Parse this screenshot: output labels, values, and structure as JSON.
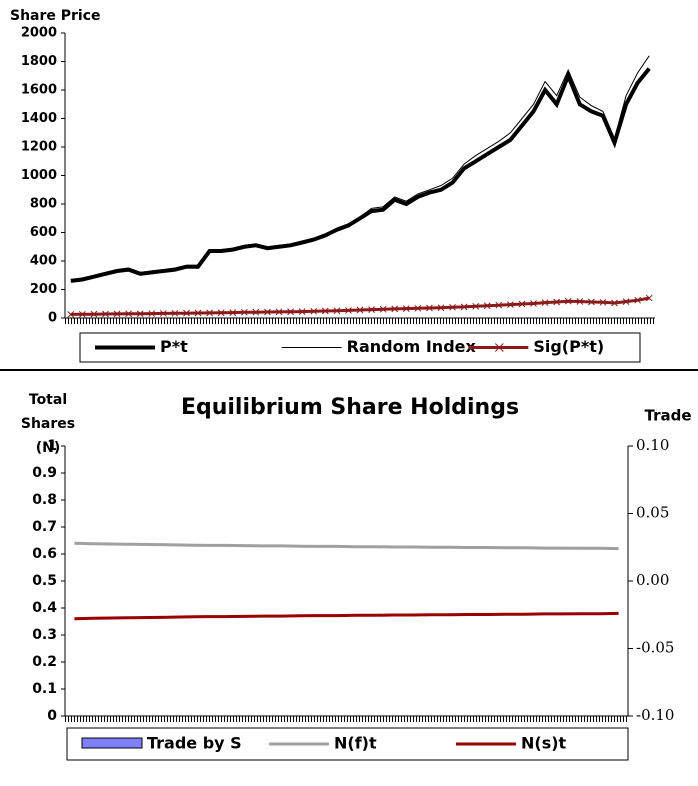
{
  "chart_data": [
    {
      "type": "line",
      "ylabel": "Share Price",
      "ylim": [
        0,
        2000
      ],
      "yticks": [
        0,
        200,
        400,
        600,
        800,
        1000,
        1200,
        1400,
        1600,
        1800,
        2000
      ],
      "legend": "bottom",
      "series": [
        {
          "name": "P*t",
          "color": "#000000",
          "values": [
            260,
            270,
            290,
            310,
            330,
            340,
            310,
            320,
            330,
            340,
            360,
            360,
            470,
            470,
            480,
            500,
            510,
            490,
            500,
            510,
            530,
            550,
            580,
            620,
            650,
            700,
            750,
            760,
            830,
            800,
            850,
            880,
            900,
            950,
            1050,
            1100,
            1150,
            1200,
            1250,
            1350,
            1450,
            1600,
            1500,
            1700,
            1500,
            1450,
            1420,
            1230,
            1500,
            1650,
            1750
          ]
        },
        {
          "name": "Random Index",
          "color": "#000000",
          "values": [
            270,
            280,
            300,
            320,
            340,
            350,
            320,
            330,
            340,
            350,
            370,
            370,
            480,
            480,
            490,
            510,
            520,
            500,
            510,
            520,
            540,
            560,
            590,
            630,
            660,
            710,
            770,
            780,
            850,
            820,
            870,
            900,
            930,
            980,
            1080,
            1140,
            1190,
            1240,
            1300,
            1400,
            1500,
            1660,
            1560,
            1740,
            1550,
            1490,
            1450,
            1260,
            1560,
            1720,
            1840
          ]
        },
        {
          "name": "Sig(P*t)",
          "color": "#8b1a1a",
          "values": [
            25,
            26,
            27,
            28,
            29,
            30,
            30,
            31,
            32,
            33,
            34,
            35,
            36,
            37,
            38,
            40,
            41,
            42,
            43,
            44,
            45,
            47,
            49,
            51,
            53,
            56,
            59,
            61,
            64,
            66,
            68,
            70,
            72,
            75,
            78,
            82,
            86,
            90,
            94,
            98,
            102,
            108,
            112,
            118,
            116,
            112,
            110,
            105,
            115,
            125,
            140
          ]
        }
      ]
    },
    {
      "type": "line",
      "title": "Equilibrium Share Holdings",
      "ylabel": "Total Shares (N)",
      "y2label": "Trade",
      "ylim": [
        0,
        1
      ],
      "yticks": [
        0,
        0.1,
        0.2,
        0.3,
        0.4,
        0.5,
        0.6,
        0.7,
        0.8,
        0.9,
        1
      ],
      "y2lim": [
        -0.1,
        0.1
      ],
      "y2ticks": [
        {
          "value": -0.1,
          "label": "-0.10"
        },
        {
          "value": -0.05,
          "label": "-0.05"
        },
        {
          "value": 0,
          "label": "0.00"
        },
        {
          "value": 0.05,
          "label": "0.05"
        },
        {
          "value": 0.1,
          "label": "0.10"
        }
      ],
      "legend": "bottom",
      "series": [
        {
          "name": "Trade by S",
          "color": "#8080ff",
          "type": "bar",
          "axis": "y2",
          "values": [
            0,
            0,
            0,
            0,
            0,
            0,
            0,
            0,
            0,
            0,
            0,
            0,
            0,
            0,
            0,
            0,
            0,
            0,
            0,
            0,
            0,
            0,
            0,
            0,
            0,
            0,
            0,
            0,
            0,
            0
          ]
        },
        {
          "name": "N(f)t",
          "color": "#a0a0a0",
          "values": [
            0.64,
            0.638,
            0.637,
            0.636,
            0.635,
            0.634,
            0.633,
            0.632,
            0.632,
            0.631,
            0.63,
            0.63,
            0.629,
            0.628,
            0.628,
            0.627,
            0.627,
            0.626,
            0.626,
            0.625,
            0.625,
            0.624,
            0.624,
            0.623,
            0.623,
            0.622,
            0.622,
            0.621,
            0.621,
            0.62
          ]
        },
        {
          "name": "N(s)t",
          "color": "#990000",
          "values": [
            0.36,
            0.362,
            0.363,
            0.364,
            0.365,
            0.366,
            0.367,
            0.368,
            0.368,
            0.369,
            0.37,
            0.37,
            0.371,
            0.372,
            0.372,
            0.373,
            0.373,
            0.374,
            0.374,
            0.375,
            0.375,
            0.376,
            0.376,
            0.377,
            0.377,
            0.378,
            0.378,
            0.379,
            0.379,
            0.38
          ]
        }
      ]
    }
  ]
}
